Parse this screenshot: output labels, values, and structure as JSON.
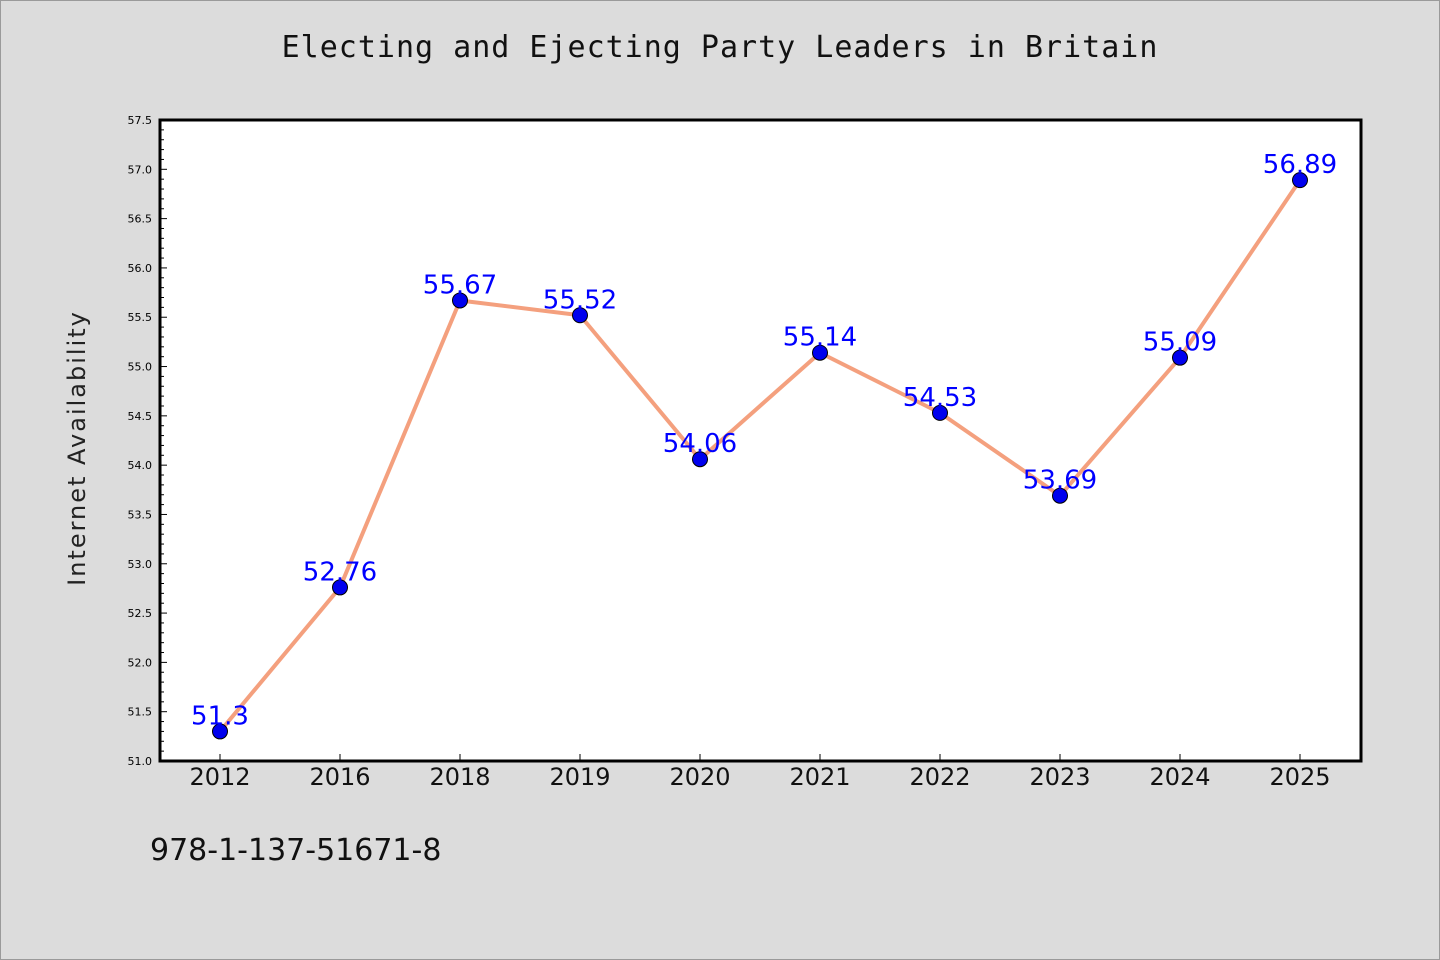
{
  "chart_data": {
    "type": "line",
    "title": "Electing and Ejecting Party Leaders in Britain",
    "xlabel": "",
    "ylabel": "Internet Availability",
    "categories": [
      "2012",
      "2016",
      "2018",
      "2019",
      "2020",
      "2021",
      "2022",
      "2023",
      "2024",
      "2025"
    ],
    "values": [
      51.3,
      52.76,
      55.67,
      55.52,
      54.06,
      55.14,
      54.53,
      53.69,
      55.09,
      56.89
    ],
    "data_labels": [
      "51.3",
      "52.76",
      "55.67",
      "55.52",
      "54.06",
      "55.14",
      "54.53",
      "53.69",
      "55.09",
      "56.89"
    ],
    "ylim": [
      51.0,
      57.5
    ],
    "yticks": [
      "51.0",
      "51.5",
      "52.0",
      "52.5",
      "53.0",
      "53.5",
      "54.0",
      "54.5",
      "55.0",
      "55.5",
      "56.0",
      "56.5",
      "57.0",
      "57.5"
    ],
    "grid": false,
    "legend": false,
    "line_color": "#f4a07e",
    "marker_color": "#0000ee",
    "label_color": "#0000ff"
  },
  "footer": {
    "isbn": "978-1-137-51671-8"
  }
}
